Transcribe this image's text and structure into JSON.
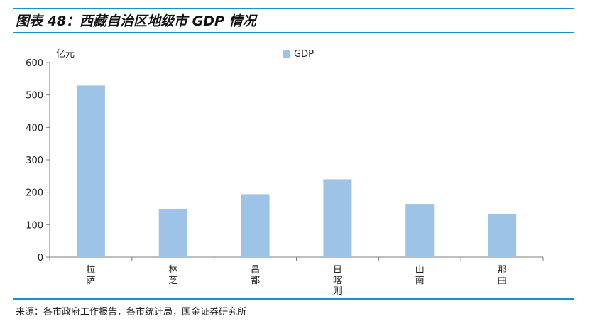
{
  "figure": {
    "title": "图表 48：西藏自治区地级市 GDP 情况",
    "source": "来源：各市政府工作报告，各市统计局，国金证券研究所"
  },
  "chart_data": {
    "type": "bar",
    "categories": [
      "拉萨",
      "林芝",
      "昌都",
      "日喀则",
      "山南",
      "那曲"
    ],
    "series": [
      {
        "name": "GDP",
        "values": [
          529,
          149,
          194,
          240,
          164,
          133
        ],
        "color": "#9dc3e6"
      }
    ],
    "ylabel": "亿元",
    "xlabel": "",
    "ylim": [
      0,
      600
    ],
    "yticks": [
      0,
      100,
      200,
      300,
      400,
      500,
      600
    ],
    "grid": false,
    "legend": "top-center"
  }
}
